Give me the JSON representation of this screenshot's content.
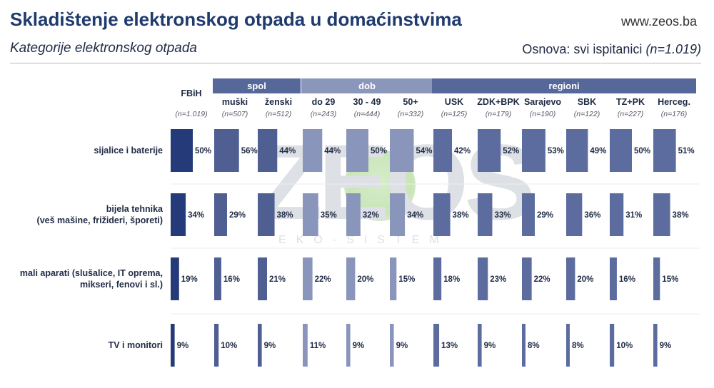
{
  "header": {
    "title": "Skladištenje elektronskog otpada u domaćinstvima",
    "website": "www.zeos.ba",
    "subtitle": "Kategorije elektronskog otpada",
    "basis_label": "Osnova: svi ispitanici",
    "basis_n": "(n=1.019)"
  },
  "watermark": {
    "text": "ZEOS",
    "subtext": "EKO-SISTEM"
  },
  "colors": {
    "header_band": "#56679a",
    "header_band_dob": "#8b96bb",
    "fbih": "#253a78",
    "spol": "#4f5f92",
    "dob": "#8a95bb",
    "regioni": "#5c6c9f"
  },
  "chart_data": {
    "type": "bar",
    "orientation": "horizontal-small-multiples",
    "title": "Kategorije elektronskog otpada",
    "unit": "%",
    "xlim": [
      0,
      100
    ],
    "groups": [
      {
        "label": "spol",
        "columns": [
          "muški",
          "ženski"
        ]
      },
      {
        "label": "dob",
        "columns": [
          "do 29",
          "30 - 49",
          "50+"
        ]
      },
      {
        "label": "regioni",
        "columns": [
          "USK",
          "ZDK+BPK",
          "Sarajevo",
          "SBK",
          "TZ+PK",
          "Herceg."
        ]
      }
    ],
    "columns": [
      {
        "name": "FBiH",
        "n": "(n=1.019)",
        "group": "total"
      },
      {
        "name": "muški",
        "n": "(n=507)",
        "group": "spol"
      },
      {
        "name": "ženski",
        "n": "(n=512)",
        "group": "spol"
      },
      {
        "name": "do 29",
        "n": "(n=243)",
        "group": "dob"
      },
      {
        "name": "30 - 49",
        "n": "(n=444)",
        "group": "dob"
      },
      {
        "name": "50+",
        "n": "(n=332)",
        "group": "dob"
      },
      {
        "name": "USK",
        "n": "(n=125)",
        "group": "regioni"
      },
      {
        "name": "ZDK+BPK",
        "n": "(n=179)",
        "group": "regioni"
      },
      {
        "name": "Sarajevo",
        "n": "(n=190)",
        "group": "regioni"
      },
      {
        "name": "SBK",
        "n": "(n=122)",
        "group": "regioni"
      },
      {
        "name": "TZ+PK",
        "n": "(n=227)",
        "group": "regioni"
      },
      {
        "name": "Herceg.",
        "n": "(n=176)",
        "group": "regioni"
      }
    ],
    "categories": [
      [
        "sijalice i baterije"
      ],
      [
        "bijela tehnika",
        "(veš mašine, frižideri, šporeti)"
      ],
      [
        "mali aparati (slušalice, IT oprema,",
        "mikseri, fenovi i sl.)"
      ],
      [
        "TV i monitori"
      ]
    ],
    "values": [
      [
        50,
        56,
        44,
        44,
        50,
        54,
        42,
        52,
        53,
        49,
        50,
        51
      ],
      [
        34,
        29,
        38,
        35,
        32,
        34,
        38,
        33,
        29,
        36,
        31,
        38
      ],
      [
        19,
        16,
        21,
        22,
        20,
        15,
        18,
        23,
        22,
        20,
        16,
        15
      ],
      [
        9,
        10,
        9,
        11,
        9,
        9,
        13,
        9,
        8,
        8,
        10,
        9
      ]
    ]
  }
}
